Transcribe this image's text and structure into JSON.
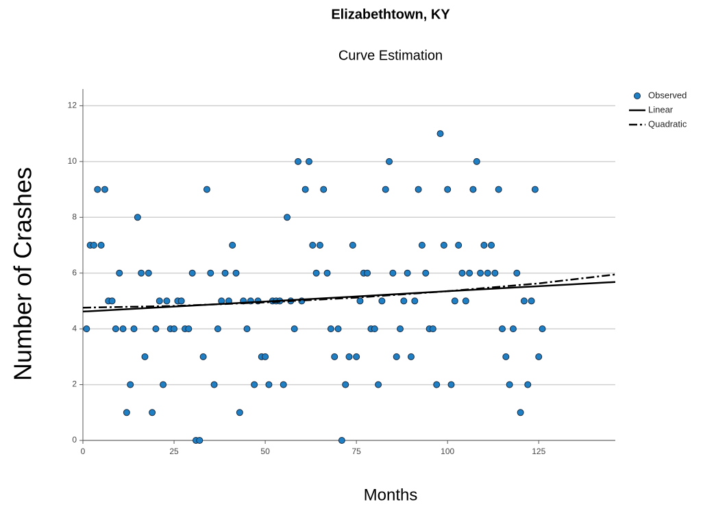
{
  "chart_data": {
    "type": "scatter",
    "title": "Elizabethtown, KY",
    "subtitle": "Curve Estimation",
    "x_label": "Months",
    "y_label": "Number of Crashes",
    "xlim": [
      0,
      146
    ],
    "ylim": [
      0,
      12.6
    ],
    "xticks": [
      0,
      25,
      50,
      75,
      100,
      125
    ],
    "yticks": [
      0,
      2,
      4,
      6,
      8,
      10,
      12
    ],
    "grid": true,
    "legend": "top-right",
    "series": [
      {
        "name": "Observed",
        "color": "#1f7fc4",
        "style": "marker",
        "x": [
          1,
          2,
          3,
          4,
          5,
          6,
          7,
          8,
          9,
          10,
          11,
          12,
          13,
          14,
          15,
          16,
          17,
          18,
          19,
          20,
          21,
          22,
          23,
          24,
          25,
          26,
          27,
          28,
          29,
          30,
          31,
          32,
          33,
          34,
          35,
          36,
          37,
          38,
          39,
          40,
          41,
          42,
          43,
          44,
          45,
          46,
          47,
          48,
          49,
          50,
          51,
          52,
          53,
          54,
          55,
          56,
          57,
          58,
          59,
          60,
          61,
          62,
          63,
          64,
          65,
          66,
          67,
          68,
          69,
          70,
          71,
          72,
          73,
          74,
          75,
          76,
          77,
          78,
          79,
          80,
          81,
          82,
          83,
          84,
          85,
          86,
          87,
          88,
          89,
          90,
          91,
          92,
          93,
          94,
          95,
          96,
          97,
          98,
          99,
          100,
          101,
          102,
          103,
          104,
          105,
          106,
          107,
          108,
          109,
          110,
          111,
          112,
          113,
          114,
          115,
          116,
          117,
          118,
          119,
          120,
          121,
          122,
          123,
          124,
          125,
          126
        ],
        "values": [
          4,
          7,
          7,
          9,
          7,
          9,
          5,
          5,
          4,
          6,
          4,
          1,
          2,
          4,
          8,
          6,
          3,
          6,
          1,
          4,
          5,
          2,
          5,
          4,
          4,
          5,
          5,
          4,
          4,
          6,
          0,
          0,
          3,
          9,
          6,
          2,
          4,
          5,
          6,
          5,
          7,
          6,
          1,
          5,
          4,
          5,
          2,
          5,
          3,
          3,
          2,
          5,
          5,
          5,
          2,
          8,
          5,
          4,
          10,
          5,
          9,
          10,
          7,
          6,
          7,
          9,
          6,
          4,
          3,
          4,
          0,
          2,
          3,
          7,
          3,
          5,
          6,
          6,
          4,
          4,
          2,
          5,
          9,
          10,
          6,
          3,
          4,
          5,
          6,
          3,
          5,
          9,
          7,
          6,
          4,
          4,
          2,
          11,
          7,
          9,
          2,
          5,
          7,
          6,
          5,
          6,
          9,
          10,
          6,
          7,
          6,
          7,
          6,
          9,
          4,
          3,
          2,
          4,
          6,
          1,
          5,
          2,
          5,
          9,
          3,
          4
        ]
      },
      {
        "name": "Linear",
        "color": "#000000",
        "style": "solid",
        "x": [
          0,
          25,
          50,
          75,
          100,
          125,
          146
        ],
        "values": [
          4.62,
          4.8,
          4.98,
          5.16,
          5.35,
          5.53,
          5.68
        ]
      },
      {
        "name": "Quadratic",
        "color": "#000000",
        "style": "dashdot",
        "x": [
          0,
          25,
          50,
          75,
          100,
          125,
          146
        ],
        "values": [
          4.76,
          4.82,
          4.95,
          5.12,
          5.35,
          5.63,
          5.95
        ]
      }
    ]
  }
}
